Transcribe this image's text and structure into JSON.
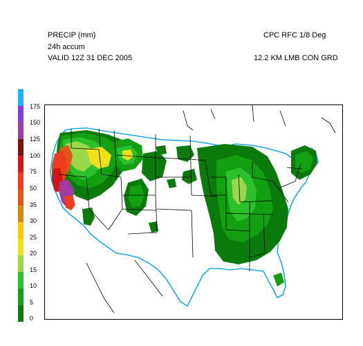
{
  "header": {
    "left_line1": "PRECIP (mm)",
    "left_line2": "24h accum",
    "left_line3": "VALID 12Z 31 DEC 2005",
    "right_line1": "CPC RFC 1/8 Deg",
    "right_line2": "12.2 KM LMB CON GRD"
  },
  "legend": {
    "labels": [
      "0",
      "5",
      "10",
      "15",
      "20",
      "25",
      "30",
      "35",
      "50",
      "75",
      "100",
      "125",
      "150",
      "175"
    ],
    "colors": [
      "#0a7a0a",
      "#12a012",
      "#2cc02c",
      "#9ad84a",
      "#f0e016",
      "#ffc800",
      "#d08a10",
      "#e05818",
      "#f03c1e",
      "#d01818",
      "#801010",
      "#a03ca0",
      "#8a3cd0",
      "#20b0ff"
    ]
  },
  "map": {
    "coastline_color": "#1ea6e6",
    "precip_colors": {
      "light": "#0a7a0a",
      "medium": "#12a012",
      "moderate": "#2cc02c",
      "yellowgreen": "#9ad84a",
      "yellow": "#f0e016",
      "orange": "#e05818",
      "red": "#f03c1e",
      "darkred": "#d01818",
      "purple": "#a03ca0"
    }
  }
}
